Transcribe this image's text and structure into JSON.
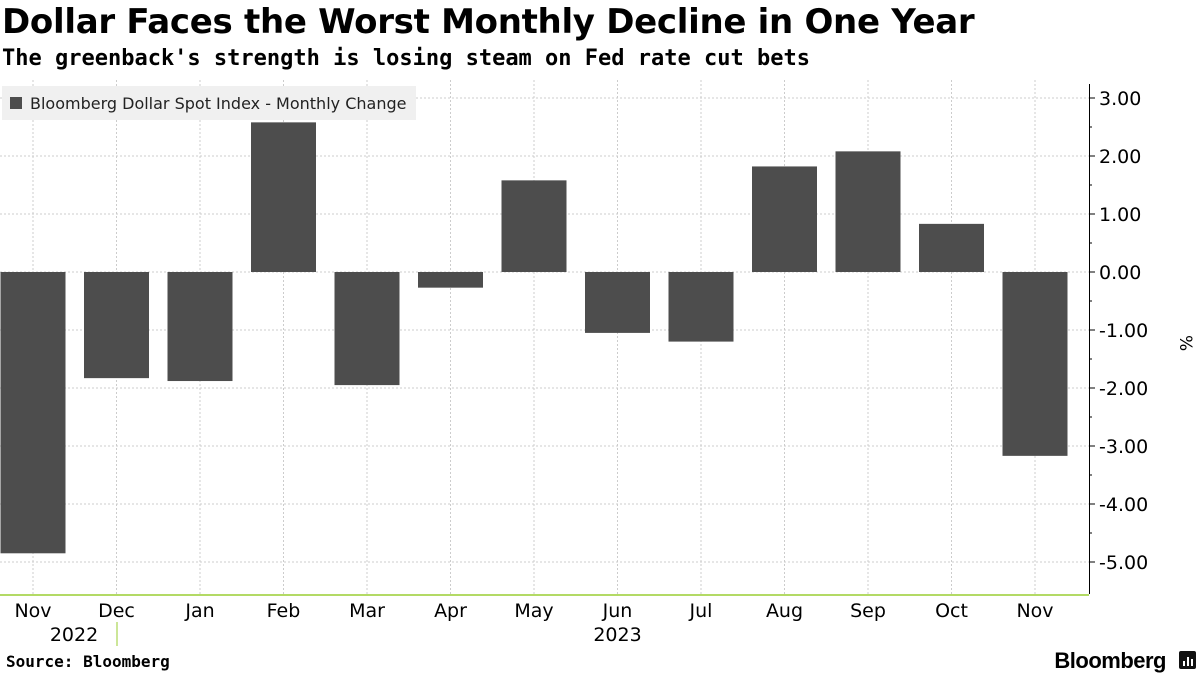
{
  "header": {
    "title": "Dollar Faces the Worst Monthly Decline in One Year",
    "subtitle": "The greenback's strength is losing steam on Fed rate cut bets"
  },
  "footer": {
    "source": "Source: Bloomberg",
    "brand": "Bloomberg"
  },
  "colors": {
    "bar": "#4d4d4d",
    "grid": "#cccccc",
    "axis": "#000000",
    "xaxis_line": "#9acd32",
    "legend_bg": "#f0f0f0"
  },
  "chart_data": {
    "type": "bar",
    "title": "Dollar Faces the Worst Monthly Decline in One Year",
    "subtitle": "The greenback's strength is losing steam on Fed rate cut bets",
    "categories": [
      "Nov",
      "Dec",
      "Jan",
      "Feb",
      "Mar",
      "Apr",
      "May",
      "Jun",
      "Jul",
      "Aug",
      "Sep",
      "Oct",
      "Nov"
    ],
    "year_labels": [
      {
        "label": "2022",
        "category_index": 0
      },
      {
        "label": "2023",
        "category_index": 7
      }
    ],
    "series": [
      {
        "name": "Bloomberg Dollar Spot Index - Monthly Change",
        "values": [
          -4.85,
          -1.83,
          -1.88,
          2.58,
          -1.95,
          -0.27,
          1.58,
          -1.05,
          -1.2,
          1.82,
          2.08,
          0.83,
          -3.17
        ]
      }
    ],
    "ylim": [
      -5.5,
      3.3
    ],
    "yticks": [
      3.0,
      2.0,
      1.0,
      0.0,
      -1.0,
      -2.0,
      -3.0,
      -4.0,
      -5.0
    ],
    "ytick_labels": [
      "3.00",
      "2.00",
      "1.00",
      "0.00",
      "-1.00",
      "-2.00",
      "-3.00",
      "-4.00",
      "-5.00"
    ],
    "ylabel": "%",
    "xlabel": "",
    "legend_position": "top-left",
    "grid": true
  }
}
